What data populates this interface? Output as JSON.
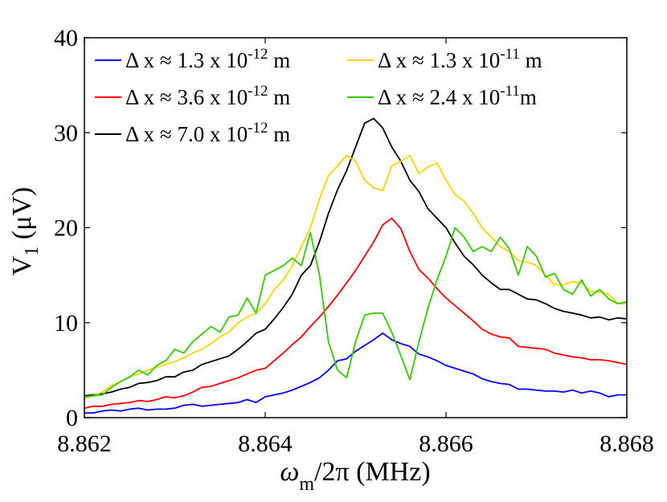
{
  "chart_data": {
    "type": "line",
    "title": "",
    "xlabel": {
      "main": "ω",
      "sub": "m",
      "rest": "/2π (MHz)"
    },
    "ylabel": {
      "main": "V",
      "sub": "1",
      "rest": " (μV)"
    },
    "xlim": [
      8.862,
      8.868
    ],
    "ylim": [
      0,
      40
    ],
    "xticks": [
      8.862,
      8.864,
      8.866,
      8.868
    ],
    "xtick_labels": [
      "8.862",
      "8.864",
      "8.866",
      "8.868"
    ],
    "yticks": [
      0,
      10,
      20,
      30,
      40
    ],
    "ytick_labels": [
      "0",
      "10",
      "20",
      "30",
      "40"
    ],
    "grid": false,
    "legend_position": "top-left",
    "series": [
      {
        "name": "blue",
        "color": "#0000FF",
        "legend": {
          "prefix": "Δ x ≈ 1.3 x 10",
          "exp": "-12",
          "suffix": " m"
        },
        "x": [
          8.862,
          8.8621,
          8.8622,
          8.8623,
          8.8624,
          8.8625,
          8.8626,
          8.8627,
          8.8628,
          8.8629,
          8.863,
          8.8631,
          8.8632,
          8.8633,
          8.8634,
          8.8635,
          8.8636,
          8.8637,
          8.8638,
          8.8639,
          8.864,
          8.8641,
          8.8642,
          8.8643,
          8.8644,
          8.8645,
          8.8646,
          8.8647,
          8.8648,
          8.8649,
          8.865,
          8.8651,
          8.8652,
          8.8653,
          8.8654,
          8.8655,
          8.8656,
          8.8657,
          8.8658,
          8.8659,
          8.866,
          8.8661,
          8.8662,
          8.8663,
          8.8664,
          8.8665,
          8.8666,
          8.8667,
          8.8668,
          8.8669,
          8.867,
          8.8671,
          8.8672,
          8.8673,
          8.8674,
          8.8675,
          8.8676,
          8.8677,
          8.8678,
          8.8679,
          8.868
        ],
        "y": [
          0.5,
          0.5,
          0.7,
          0.8,
          0.7,
          0.9,
          1.0,
          0.8,
          0.9,
          0.9,
          1.0,
          1.3,
          1.4,
          1.2,
          1.3,
          1.4,
          1.5,
          1.6,
          1.9,
          1.6,
          2.2,
          2.4,
          2.6,
          2.9,
          3.3,
          3.7,
          4.2,
          5.0,
          6.0,
          6.2,
          7.0,
          7.6,
          8.2,
          8.9,
          8.2,
          7.8,
          7.5,
          6.7,
          6.4,
          6.0,
          5.5,
          5.2,
          4.9,
          4.6,
          4.1,
          3.8,
          3.6,
          3.5,
          3.0,
          3.0,
          2.9,
          2.8,
          2.8,
          2.7,
          2.9,
          2.6,
          2.8,
          2.6,
          2.2,
          2.4,
          2.4
        ]
      },
      {
        "name": "red",
        "color": "#FF0000",
        "legend": {
          "prefix": "Δ x ≈ 3.6 x 10",
          "exp": "-12",
          "suffix": " m"
        },
        "x": [
          8.862,
          8.8621,
          8.8622,
          8.8623,
          8.8624,
          8.8625,
          8.8626,
          8.8627,
          8.8628,
          8.8629,
          8.863,
          8.8631,
          8.8632,
          8.8633,
          8.8634,
          8.8635,
          8.8636,
          8.8637,
          8.8638,
          8.8639,
          8.864,
          8.8641,
          8.8642,
          8.8643,
          8.8644,
          8.8645,
          8.8646,
          8.8647,
          8.8648,
          8.8649,
          8.865,
          8.8651,
          8.8652,
          8.8653,
          8.8654,
          8.8655,
          8.8656,
          8.8657,
          8.8658,
          8.8659,
          8.866,
          8.8661,
          8.8662,
          8.8663,
          8.8664,
          8.8665,
          8.8666,
          8.8667,
          8.8668,
          8.8669,
          8.867,
          8.8671,
          8.8672,
          8.8673,
          8.8674,
          8.8675,
          8.8676,
          8.8677,
          8.8678,
          8.8679,
          8.868
        ],
        "y": [
          1.0,
          1.2,
          1.2,
          1.4,
          1.5,
          1.6,
          1.8,
          1.7,
          1.9,
          2.2,
          2.1,
          2.3,
          2.7,
          3.2,
          3.3,
          3.6,
          3.9,
          4.2,
          4.6,
          5.0,
          5.2,
          6.0,
          6.8,
          7.7,
          8.5,
          9.6,
          10.6,
          11.7,
          12.9,
          14.2,
          15.5,
          17.0,
          18.5,
          20.3,
          21.0,
          19.9,
          17.5,
          15.6,
          14.7,
          13.6,
          12.6,
          11.8,
          11.0,
          10.2,
          9.3,
          8.8,
          8.5,
          8.4,
          7.5,
          7.4,
          7.3,
          7.2,
          6.8,
          6.6,
          6.4,
          6.3,
          6.1,
          6.1,
          6.0,
          5.8,
          5.6
        ]
      },
      {
        "name": "black",
        "color": "#000000",
        "legend": {
          "prefix": "Δ x ≈ 7.0 x 10",
          "exp": "-12",
          "suffix": " m"
        },
        "x": [
          8.862,
          8.8621,
          8.8622,
          8.8623,
          8.8624,
          8.8625,
          8.8626,
          8.8627,
          8.8628,
          8.8629,
          8.863,
          8.8631,
          8.8632,
          8.8633,
          8.8634,
          8.8635,
          8.8636,
          8.8637,
          8.8638,
          8.8639,
          8.864,
          8.8641,
          8.8642,
          8.8643,
          8.8644,
          8.8645,
          8.8646,
          8.8647,
          8.8648,
          8.8649,
          8.865,
          8.8651,
          8.8652,
          8.8653,
          8.8654,
          8.8655,
          8.8656,
          8.8657,
          8.8658,
          8.8659,
          8.866,
          8.8661,
          8.8662,
          8.8663,
          8.8664,
          8.8665,
          8.8666,
          8.8667,
          8.8668,
          8.8669,
          8.867,
          8.8671,
          8.8672,
          8.8673,
          8.8674,
          8.8675,
          8.8676,
          8.8677,
          8.8678,
          8.8679,
          8.868
        ],
        "y": [
          2.3,
          2.4,
          2.5,
          2.7,
          3.0,
          3.2,
          3.6,
          3.7,
          3.9,
          4.3,
          4.3,
          4.8,
          5.0,
          5.6,
          5.9,
          6.2,
          6.5,
          7.2,
          8.0,
          8.9,
          9.3,
          10.4,
          11.6,
          13.0,
          15.0,
          16.0,
          18.5,
          21.5,
          24.0,
          26.0,
          28.5,
          31.0,
          31.5,
          30.5,
          28.5,
          27.0,
          25.0,
          23.8,
          22.0,
          21.0,
          20.0,
          18.4,
          17.0,
          16.1,
          15.0,
          14.2,
          13.5,
          13.5,
          13.0,
          12.5,
          12.4,
          12.0,
          11.5,
          11.2,
          11.0,
          10.8,
          10.5,
          10.6,
          10.3,
          10.5,
          10.4
        ]
      },
      {
        "name": "yellow",
        "color": "#FFD400",
        "legend": {
          "prefix": "Δ x ≈ 1.3 x 10",
          "exp": "-11",
          "suffix": " m"
        },
        "x": [
          8.862,
          8.8621,
          8.8622,
          8.8623,
          8.8624,
          8.8625,
          8.8626,
          8.8627,
          8.8628,
          8.8629,
          8.863,
          8.8631,
          8.8632,
          8.8633,
          8.8634,
          8.8635,
          8.8636,
          8.8637,
          8.8638,
          8.8639,
          8.864,
          8.8641,
          8.8642,
          8.8643,
          8.8644,
          8.8645,
          8.8646,
          8.8647,
          8.8648,
          8.8649,
          8.865,
          8.8651,
          8.8652,
          8.8653,
          8.8654,
          8.8655,
          8.8656,
          8.8657,
          8.8658,
          8.8659,
          8.866,
          8.8661,
          8.8662,
          8.8663,
          8.8664,
          8.8665,
          8.8666,
          8.8667,
          8.8668,
          8.8669,
          8.867,
          8.8671,
          8.8672,
          8.8673,
          8.8674,
          8.8675,
          8.8676,
          8.8677,
          8.8678,
          8.8679,
          8.868
        ],
        "y": [
          2.0,
          2.3,
          2.7,
          3.4,
          3.8,
          4.3,
          4.6,
          5.0,
          5.3,
          5.6,
          5.9,
          6.3,
          6.8,
          7.2,
          7.8,
          8.5,
          9.0,
          10.0,
          10.6,
          11.0,
          12.0,
          13.5,
          14.5,
          16.0,
          18.0,
          20.0,
          23.0,
          25.5,
          26.5,
          27.6,
          27.0,
          25.0,
          24.2,
          23.9,
          26.5,
          27.0,
          27.6,
          25.7,
          26.4,
          26.8,
          25.0,
          23.5,
          22.8,
          21.5,
          20.0,
          19.0,
          18.0,
          17.5,
          16.5,
          16.4,
          16.0,
          15.0,
          14.0,
          14.0,
          14.3,
          14.2,
          13.3,
          13.2,
          13.0,
          12.0,
          12.0
        ]
      },
      {
        "name": "green",
        "color": "#33CC00",
        "legend": {
          "prefix": "Δ x ≈ 2.4 x 10",
          "exp": "-11",
          "suffix": "m"
        },
        "x": [
          8.862,
          8.8621,
          8.8622,
          8.8623,
          8.8624,
          8.8625,
          8.8626,
          8.8627,
          8.8628,
          8.8629,
          8.863,
          8.8631,
          8.8632,
          8.8633,
          8.8634,
          8.8635,
          8.8636,
          8.8637,
          8.8638,
          8.8639,
          8.864,
          8.8641,
          8.8642,
          8.8643,
          8.8644,
          8.8645,
          8.8646,
          8.8647,
          8.8648,
          8.8649,
          8.865,
          8.8651,
          8.8652,
          8.8653,
          8.8654,
          8.8655,
          8.8656,
          8.8657,
          8.8658,
          8.8659,
          8.866,
          8.8661,
          8.8662,
          8.8663,
          8.8664,
          8.8665,
          8.8666,
          8.8667,
          8.8668,
          8.8669,
          8.867,
          8.8671,
          8.8672,
          8.8673,
          8.8674,
          8.8675,
          8.8676,
          8.8677,
          8.8678,
          8.8679,
          8.868
        ],
        "y": [
          2.2,
          2.3,
          2.4,
          3.2,
          3.8,
          4.3,
          5.0,
          4.5,
          5.5,
          6.0,
          7.2,
          6.8,
          8.0,
          8.8,
          9.6,
          9.0,
          10.6,
          10.8,
          12.6,
          11.0,
          15.0,
          15.5,
          16.0,
          16.8,
          16.0,
          19.5,
          15.0,
          8.0,
          5.0,
          4.2,
          8.0,
          10.8,
          11.0,
          11.0,
          9.0,
          6.5,
          4.0,
          8.0,
          11.5,
          14.5,
          17.0,
          20.0,
          19.0,
          17.5,
          18.0,
          17.5,
          19.0,
          17.8,
          15.0,
          18.0,
          17.0,
          14.8,
          15.2,
          13.5,
          13.0,
          14.5,
          12.8,
          13.5,
          12.5,
          12.0,
          12.2
        ]
      }
    ]
  }
}
